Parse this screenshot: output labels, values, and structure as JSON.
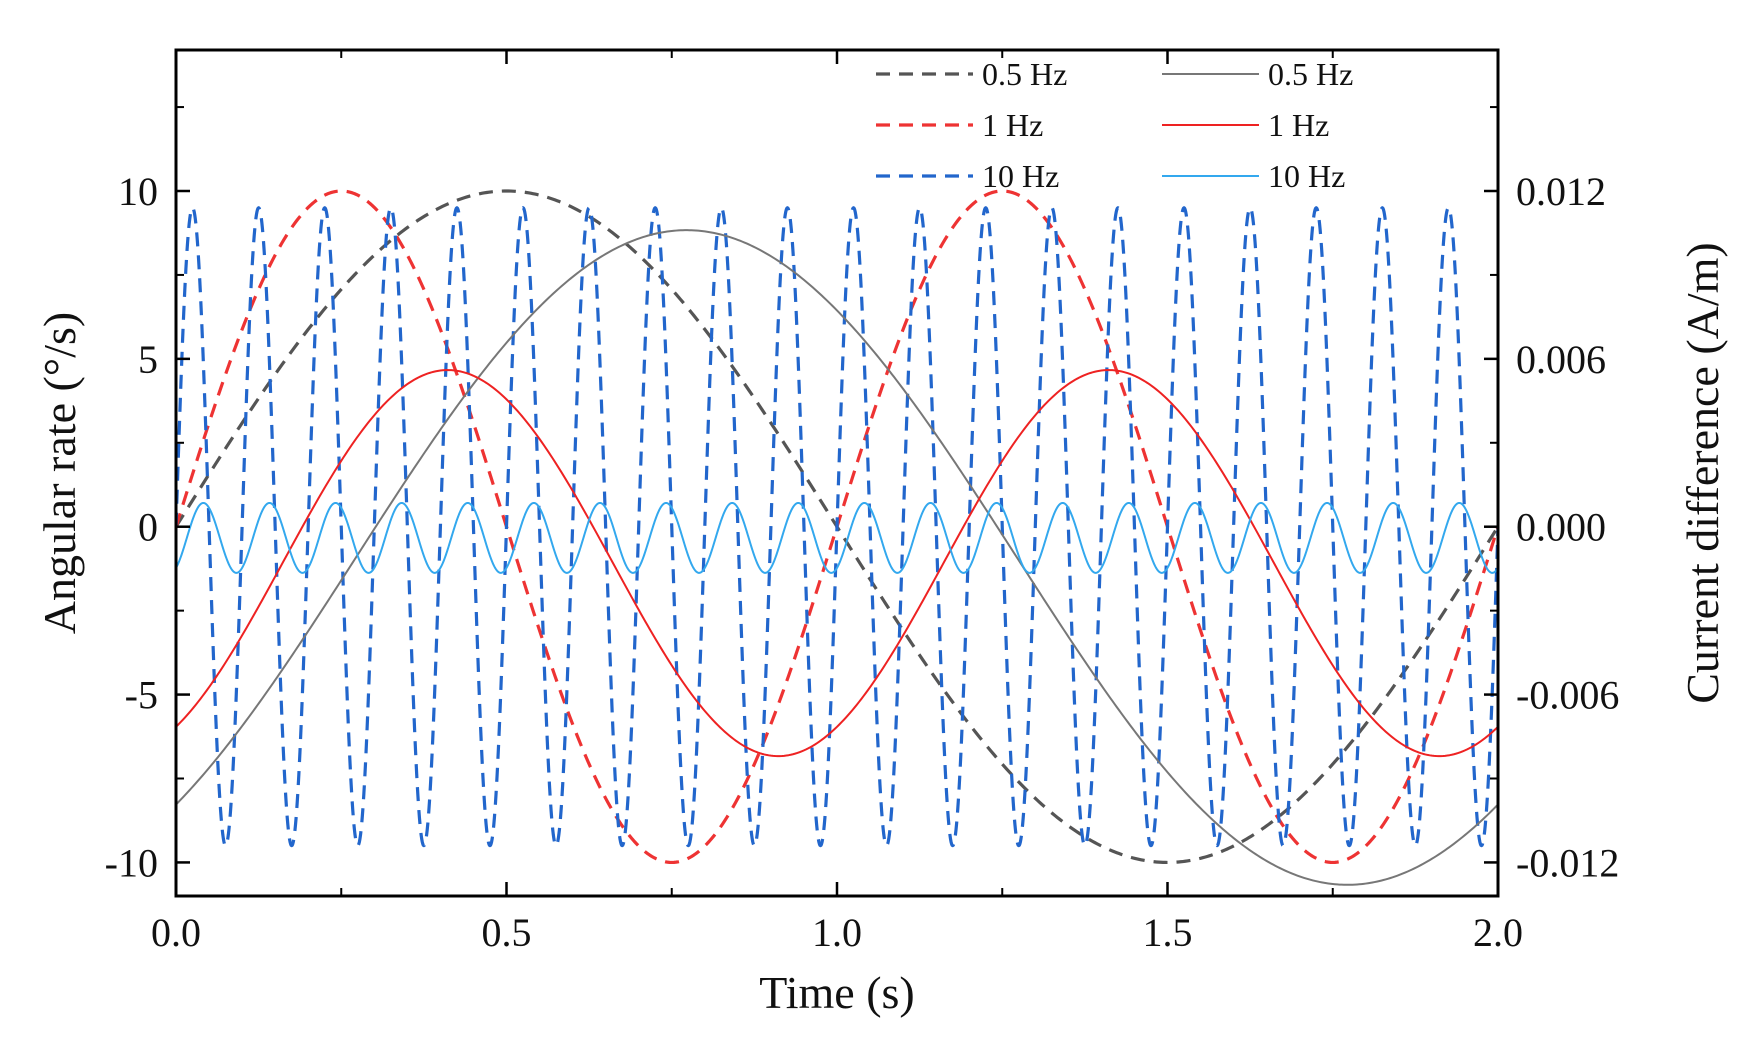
{
  "chart_data": {
    "type": "line",
    "title": "",
    "xlabel": "Time (s)",
    "ylabel": "Angular rate (°/s)",
    "y2label": "Current difference (A/m)",
    "xlim": [
      0,
      2
    ],
    "ylim": [
      -11,
      14.2
    ],
    "y2lim": [
      -0.0132,
      0.01704
    ],
    "xticks": [
      0,
      0.5,
      1,
      1.5,
      2
    ],
    "xtick_labels": [
      "0.0",
      "0.5",
      "1.0",
      "1.5",
      "2.0"
    ],
    "yticks": [
      -10,
      -5,
      0,
      5,
      10
    ],
    "ytick_labels": [
      "-10",
      "-5",
      "0",
      "5",
      "10"
    ],
    "y2ticks": [
      -0.012,
      -0.006,
      0,
      0.006,
      0.012
    ],
    "y2tick_labels": [
      "-0.012",
      "-0.006",
      "0.000",
      "0.006",
      "0.012"
    ],
    "grid": false,
    "legend_position": "top-right",
    "series": [
      {
        "name": "0.5 Hz",
        "axis": "left",
        "style": "dashed",
        "color": "#555555",
        "frequency_hz": 0.5,
        "amplitude": 10,
        "phase_deg": 0,
        "offset": 0
      },
      {
        "name": "1 Hz",
        "axis": "left",
        "style": "dashed",
        "color": "#ee3333",
        "frequency_hz": 1,
        "amplitude": 10,
        "phase_deg": 0,
        "offset": 0
      },
      {
        "name": "10 Hz",
        "axis": "left",
        "style": "dashed",
        "color": "#2266cc",
        "frequency_hz": 10,
        "amplitude": 9.5,
        "phase_deg": 0,
        "offset": 0
      },
      {
        "name": "0.5 Hz",
        "axis": "right",
        "style": "solid",
        "color": "#777777",
        "frequency_hz": 0.5,
        "amplitude": 0.0117,
        "phase_deg": -49,
        "offset": -0.0011
      },
      {
        "name": "1 Hz",
        "axis": "right",
        "style": "solid",
        "color": "#ee2222",
        "frequency_hz": 1,
        "amplitude": 0.0069,
        "phase_deg": -58,
        "offset": -0.0013
      },
      {
        "name": "10 Hz",
        "axis": "right",
        "style": "solid",
        "color": "#33a8ee",
        "frequency_hz": 10,
        "amplitude": 0.00125,
        "phase_deg": -59,
        "offset": -0.0004
      }
    ]
  }
}
